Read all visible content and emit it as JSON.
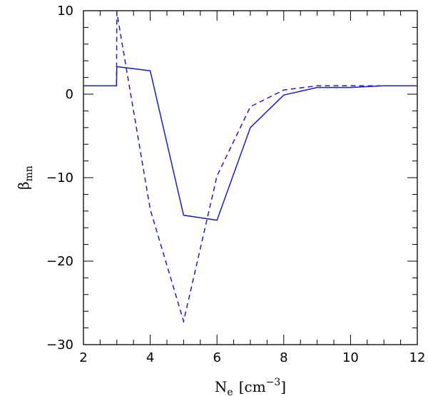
{
  "chart_data": {
    "type": "line",
    "xlabel": "N",
    "xlabel_sub": "e",
    "xlabel_units": "[cm",
    "xlabel_units_sup": "−3",
    "xlabel_units_close": "]",
    "ylabel": "β",
    "ylabel_sub": "mn",
    "xlim": [
      2,
      12
    ],
    "ylim": [
      -30,
      10
    ],
    "xticks": [
      2,
      4,
      6,
      8,
      10,
      12
    ],
    "xtick_labels": [
      "2",
      "4",
      "6",
      "8",
      "10",
      "12"
    ],
    "yticks": [
      -30,
      -20,
      -10,
      0,
      10
    ],
    "ytick_labels": [
      "−30",
      "−20",
      "−10",
      "0",
      "10"
    ],
    "grid": false,
    "series": [
      {
        "style": "solid",
        "color": "#1a1adb",
        "x": [
          2,
          2.99,
          3.0,
          4.0,
          5.0,
          6.0,
          7.0,
          8.0,
          9.0,
          10.0,
          11.0,
          12.0
        ],
        "y": [
          1.0,
          1.0,
          3.3,
          2.8,
          -14.5,
          -15.1,
          -4.0,
          -0.1,
          0.8,
          0.8,
          1.0,
          1.0
        ]
      },
      {
        "style": "dashed",
        "color": "#1a1adb",
        "x": [
          2,
          2.99,
          3.0,
          4.0,
          5.0,
          6.0,
          7.0,
          8.0,
          9.0,
          10.0,
          11.0,
          12.0
        ],
        "y": [
          1.0,
          1.0,
          9.8,
          -13.8,
          -27.2,
          -9.8,
          -1.5,
          0.5,
          1.0,
          1.0,
          1.0,
          1.0
        ]
      }
    ]
  }
}
